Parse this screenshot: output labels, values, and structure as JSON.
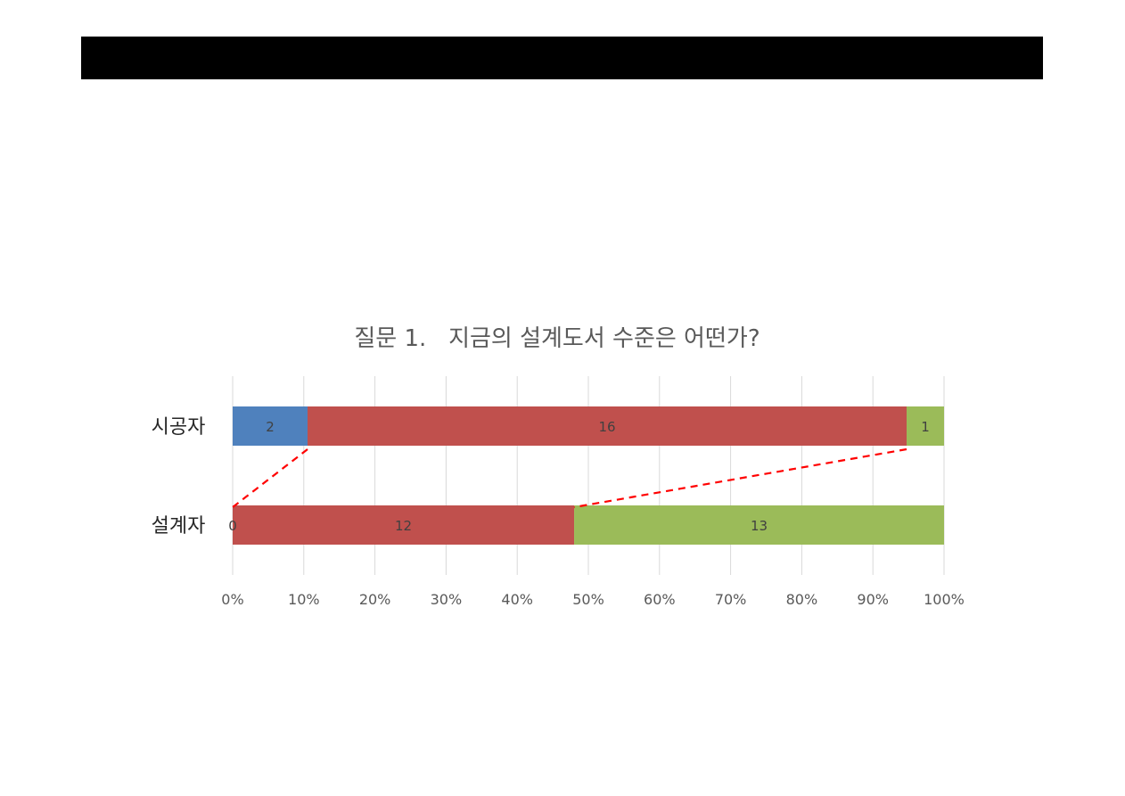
{
  "chart_data": {
    "type": "bar",
    "orientation": "horizontal",
    "stacked": "percent",
    "title": "질문 1.   지금의 설계도서 수준은 어떤가?",
    "categories": [
      "시공자",
      "설계자"
    ],
    "series": [
      {
        "values": [
          2,
          0
        ],
        "color": "#4f81bd"
      },
      {
        "values": [
          16,
          12
        ],
        "color": "#c0504d"
      },
      {
        "values": [
          1,
          13
        ],
        "color": "#9bbb59"
      }
    ],
    "data_labels": [
      [
        "2",
        "16",
        "1"
      ],
      [
        "0",
        "12",
        "13"
      ]
    ],
    "x_ticks": [
      "0%",
      "10%",
      "20%",
      "30%",
      "40%",
      "50%",
      "60%",
      "70%",
      "80%",
      "90%",
      "100%"
    ],
    "xlim": [
      0,
      100
    ],
    "grid": true,
    "legend": "none",
    "annotations": "red dashed connector lines between the segment boundaries of the two bars",
    "connector_color": "#ff0000"
  }
}
